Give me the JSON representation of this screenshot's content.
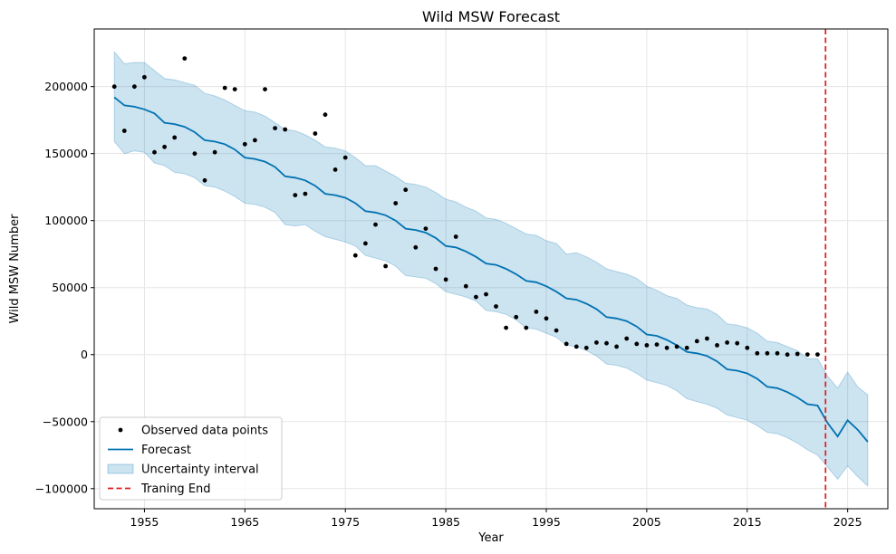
{
  "chart_data": {
    "type": "line",
    "title": "Wild MSW Forecast",
    "xlabel": "Year",
    "ylabel": "Wild MSW Number",
    "xlim": [
      1950,
      2029
    ],
    "ylim": [
      -115000,
      243000
    ],
    "x_ticks": [
      1955,
      1965,
      1975,
      1985,
      1995,
      2005,
      2015,
      2025
    ],
    "y_ticks": [
      -100000,
      -50000,
      0,
      50000,
      100000,
      150000,
      200000
    ],
    "grid": true,
    "legend_position": "lower-left",
    "colors": {
      "observed": "#000000",
      "forecast": "#0072b2",
      "band_fill": "#0072b2",
      "band_opacity": 0.2,
      "training_end": "#e01b1b",
      "grid": "#e5e5e5"
    },
    "legend": [
      {
        "key": "observed",
        "label": "Observed data points"
      },
      {
        "key": "forecast",
        "label": "Forecast"
      },
      {
        "key": "band",
        "label": "Uncertainty interval"
      },
      {
        "key": "training_end",
        "label": "Traning End"
      }
    ],
    "observed": {
      "x": [
        1952,
        1953,
        1954,
        1955,
        1956,
        1957,
        1958,
        1959,
        1960,
        1961,
        1962,
        1963,
        1964,
        1965,
        1966,
        1967,
        1968,
        1969,
        1970,
        1971,
        1972,
        1973,
        1974,
        1975,
        1976,
        1977,
        1978,
        1979,
        1980,
        1981,
        1982,
        1983,
        1984,
        1985,
        1986,
        1987,
        1988,
        1989,
        1990,
        1991,
        1992,
        1993,
        1994,
        1995,
        1996,
        1997,
        1998,
        1999,
        2000,
        2001,
        2002,
        2003,
        2004,
        2005,
        2006,
        2007,
        2008,
        2009,
        2010,
        2011,
        2012,
        2013,
        2014,
        2015,
        2016,
        2017,
        2018,
        2019,
        2020,
        2021,
        2022
      ],
      "y": [
        200000,
        167000,
        200000,
        207000,
        151000,
        155000,
        162000,
        221000,
        150000,
        130000,
        151000,
        199000,
        198000,
        157000,
        160000,
        198000,
        169000,
        168000,
        119000,
        120000,
        165000,
        179000,
        138000,
        147000,
        74000,
        83000,
        97000,
        66000,
        113000,
        123000,
        80000,
        94000,
        64000,
        56000,
        88000,
        51000,
        43000,
        45000,
        36000,
        20000,
        28000,
        20000,
        32000,
        27000,
        18000,
        8000,
        6000,
        5000,
        9000,
        8500,
        6000,
        12000,
        8000,
        7000,
        7500,
        5000,
        6000,
        5000,
        10000,
        12000,
        7000,
        9000,
        8500,
        5000,
        1000,
        1000,
        1000,
        0,
        500,
        100,
        100
      ]
    },
    "forecast": {
      "x": [
        1952,
        1953,
        1954,
        1955,
        1956,
        1957,
        1958,
        1959,
        1960,
        1961,
        1962,
        1963,
        1964,
        1965,
        1966,
        1967,
        1968,
        1969,
        1970,
        1971,
        1972,
        1973,
        1974,
        1975,
        1976,
        1977,
        1978,
        1979,
        1980,
        1981,
        1982,
        1983,
        1984,
        1985,
        1986,
        1987,
        1988,
        1989,
        1990,
        1991,
        1992,
        1993,
        1994,
        1995,
        1996,
        1997,
        1998,
        1999,
        2000,
        2001,
        2002,
        2003,
        2004,
        2005,
        2006,
        2007,
        2008,
        2009,
        2010,
        2011,
        2012,
        2013,
        2014,
        2015,
        2016,
        2017,
        2018,
        2019,
        2020,
        2021,
        2022,
        2023,
        2024,
        2025,
        2026,
        2027
      ],
      "y": [
        192000,
        186000,
        185000,
        183000,
        180000,
        173000,
        172000,
        170000,
        166000,
        160000,
        159000,
        157000,
        153000,
        147000,
        146000,
        144000,
        140000,
        133000,
        132000,
        130000,
        126000,
        120000,
        119000,
        117000,
        113000,
        107000,
        106000,
        104000,
        100000,
        94000,
        93000,
        91000,
        87000,
        81000,
        80000,
        77000,
        73000,
        68000,
        67000,
        64000,
        60000,
        55000,
        54000,
        51000,
        47000,
        42000,
        41000,
        38000,
        34000,
        28000,
        27000,
        25000,
        21000,
        15000,
        14000,
        11000,
        7000,
        2000,
        1000,
        -1000,
        -5000,
        -11000,
        -12000,
        -14000,
        -18000,
        -24000,
        -25000,
        -28000,
        -32000,
        -37000,
        -38000,
        -51000,
        -61000,
        -49000,
        -56000,
        -65000
      ]
    },
    "band": {
      "upper": [
        226000,
        217000,
        218000,
        218000,
        212000,
        206000,
        205000,
        203000,
        201000,
        195000,
        193000,
        190000,
        186000,
        182000,
        181000,
        178000,
        173000,
        168000,
        167000,
        164000,
        160000,
        155000,
        154000,
        152000,
        147000,
        141000,
        141000,
        137000,
        133000,
        128000,
        127000,
        125000,
        121000,
        116000,
        114000,
        110000,
        107000,
        102000,
        101000,
        98000,
        94000,
        90000,
        89000,
        85000,
        83000,
        75000,
        76000,
        73000,
        69000,
        64000,
        62000,
        60000,
        57000,
        51000,
        48000,
        44000,
        42000,
        37000,
        35000,
        34000,
        30000,
        23000,
        22000,
        20000,
        16000,
        10000,
        9000,
        6000,
        3000,
        -3000,
        -3000,
        -16000,
        -25000,
        -13000,
        -24000,
        -30000
      ],
      "lower": [
        159000,
        150000,
        152000,
        151000,
        143000,
        141000,
        136000,
        135000,
        132000,
        126000,
        125000,
        122000,
        118000,
        113000,
        112000,
        110000,
        106000,
        97000,
        96000,
        97000,
        92000,
        88000,
        86000,
        84000,
        81000,
        74000,
        72000,
        70000,
        66000,
        59000,
        58000,
        57000,
        53000,
        47000,
        45000,
        43000,
        40000,
        33000,
        32000,
        30000,
        26000,
        20000,
        19000,
        16000,
        13000,
        7000,
        6000,
        3000,
        -1000,
        -7000,
        -8000,
        -10000,
        -14000,
        -19000,
        -21000,
        -23000,
        -27000,
        -33000,
        -35000,
        -37000,
        -40000,
        -45000,
        -47000,
        -49000,
        -53000,
        -58000,
        -59000,
        -62000,
        -66000,
        -71000,
        -75000,
        -84000,
        -93000,
        -83000,
        -91000,
        -98000
      ]
    },
    "training_end_x": 2022.8
  }
}
